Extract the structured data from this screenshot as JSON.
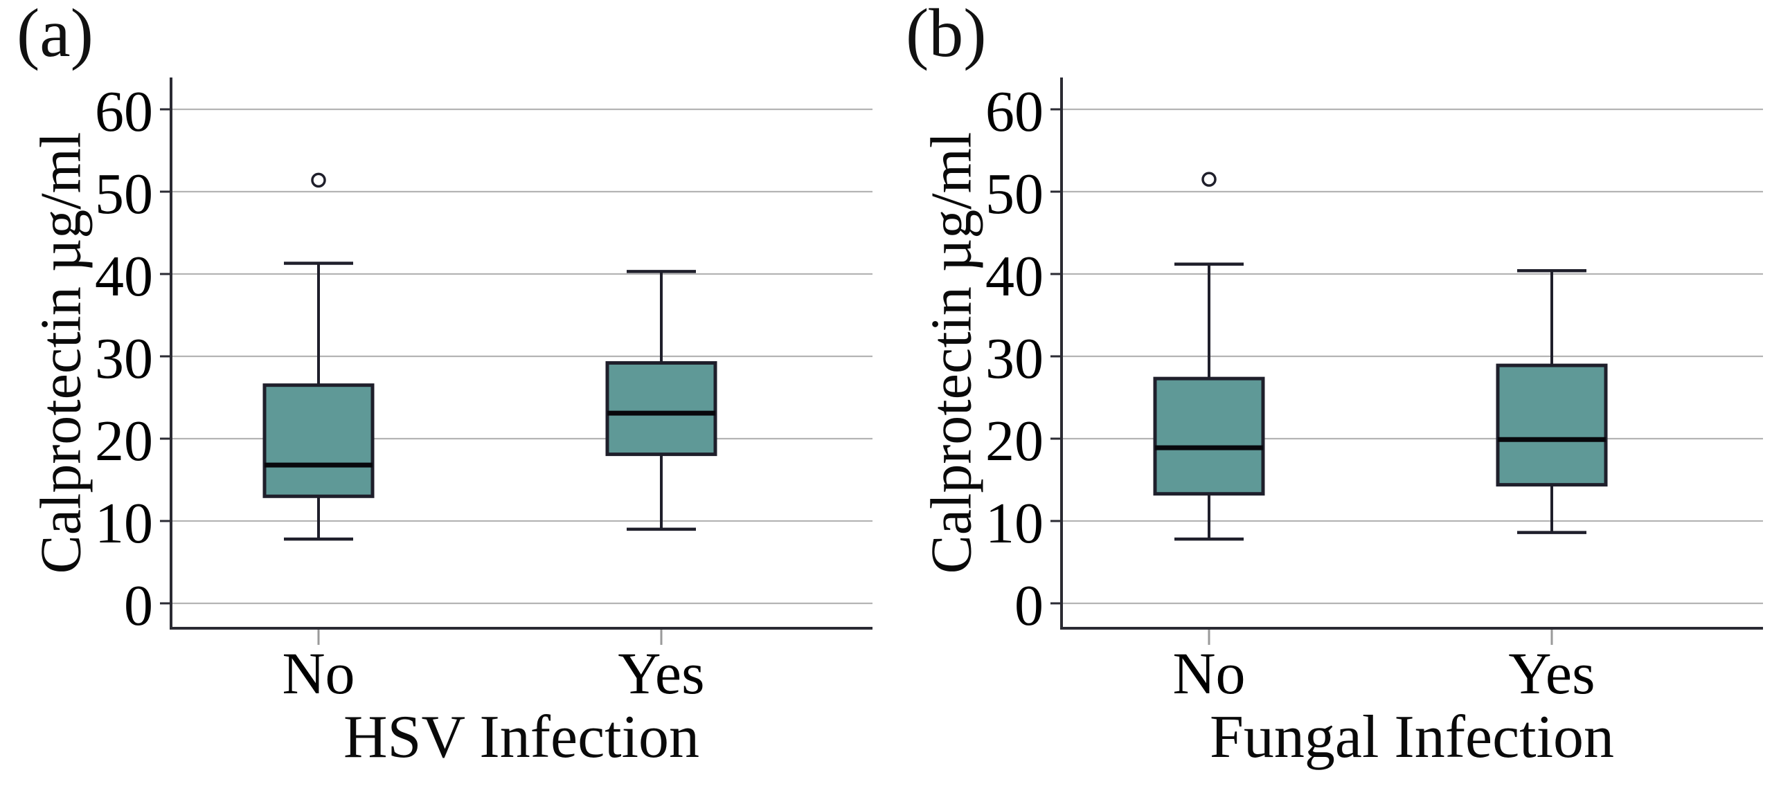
{
  "figure": {
    "background": "#ffffff",
    "text_color": "#0a0a0a"
  },
  "chart_data": [
    {
      "type": "boxplot",
      "panel_label": "(a)",
      "xlabel": "HSV Infection",
      "ylabel": "Calprotectin µg/ml",
      "ylim": [
        0,
        60
      ],
      "yticks": [
        0,
        10,
        20,
        30,
        40,
        50,
        60
      ],
      "grid": true,
      "legend": "none",
      "categories": [
        "No",
        "Yes"
      ],
      "series": [
        {
          "category": "No",
          "whisker_low": 7.8,
          "q1": 13.0,
          "median": 16.8,
          "q3": 26.5,
          "whisker_high": 41.3,
          "outliers": [
            51.4
          ]
        },
        {
          "category": "Yes",
          "whisker_low": 9.0,
          "q1": 18.1,
          "median": 23.1,
          "q3": 29.2,
          "whisker_high": 40.3,
          "outliers": []
        }
      ],
      "colors": {
        "box_fill": "#5f9997",
        "box_stroke": "#1f1f2b",
        "median": "#08080c",
        "gridline": "#b4b4b4",
        "axis": "#2b2b33",
        "x_tick": "#9a9a9a"
      }
    },
    {
      "type": "boxplot",
      "panel_label": "(b)",
      "xlabel": "Fungal Infection",
      "ylabel": "Calprotectin µg/ml",
      "ylim": [
        0,
        60
      ],
      "yticks": [
        0,
        10,
        20,
        30,
        40,
        50,
        60
      ],
      "grid": true,
      "legend": "none",
      "categories": [
        "No",
        "Yes"
      ],
      "series": [
        {
          "category": "No",
          "whisker_low": 7.8,
          "q1": 13.3,
          "median": 18.9,
          "q3": 27.3,
          "whisker_high": 41.2,
          "outliers": [
            51.5
          ]
        },
        {
          "category": "Yes",
          "whisker_low": 8.6,
          "q1": 14.4,
          "median": 19.9,
          "q3": 28.9,
          "whisker_high": 40.4,
          "outliers": []
        }
      ],
      "colors": {
        "box_fill": "#5f9997",
        "box_stroke": "#1f1f2b",
        "median": "#08080c",
        "gridline": "#b4b4b4",
        "axis": "#2b2b33",
        "x_tick": "#9a9a9a"
      }
    }
  ]
}
